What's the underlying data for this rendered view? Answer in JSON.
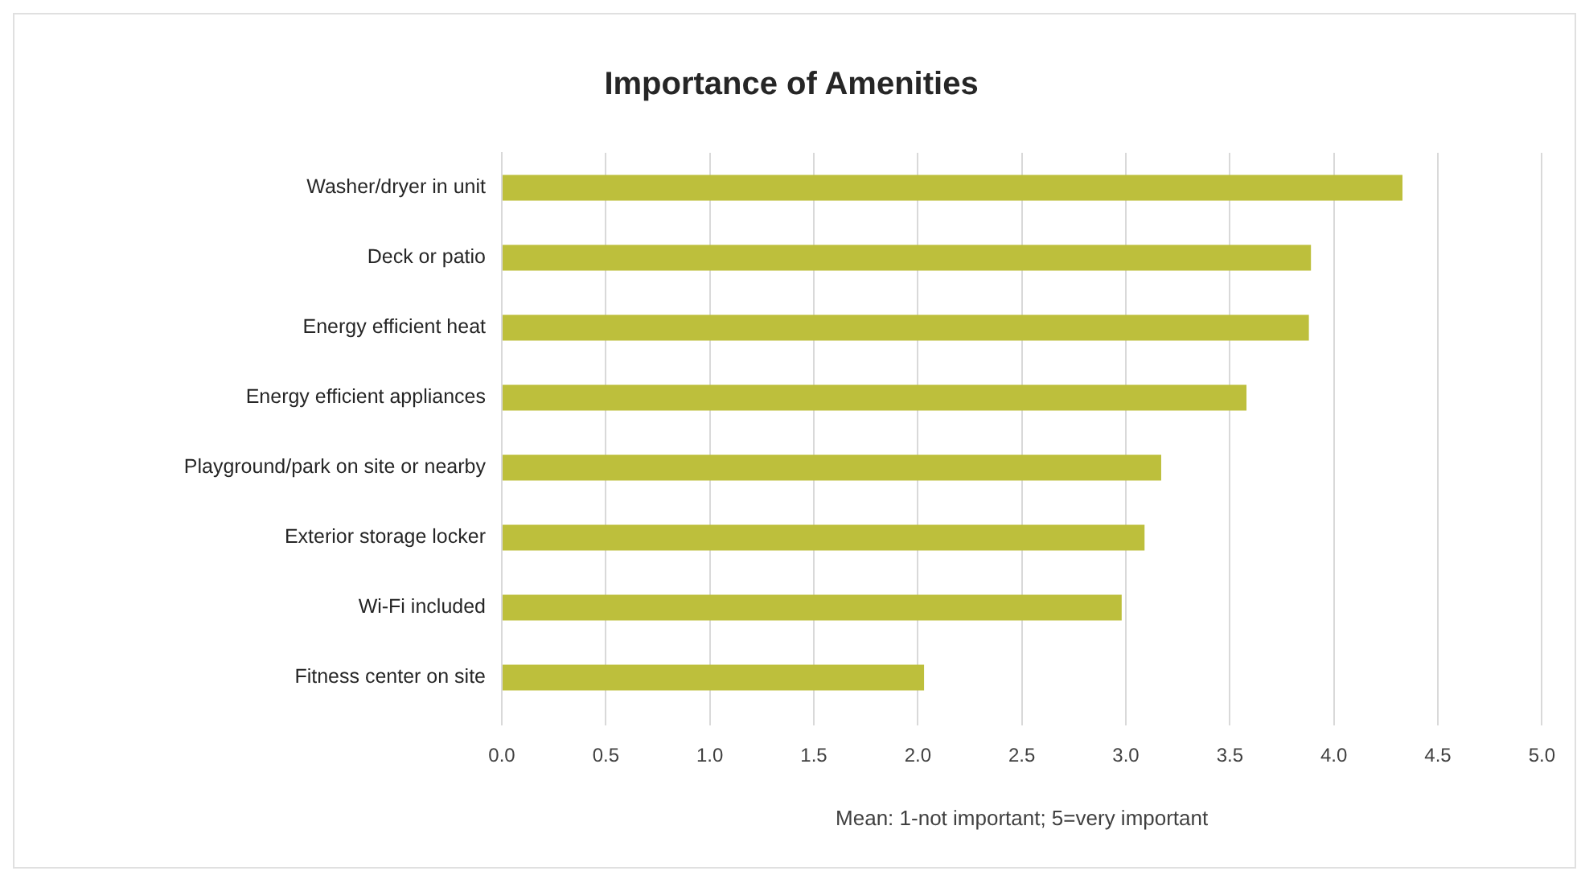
{
  "chart_data": {
    "type": "bar",
    "orientation": "horizontal",
    "title": "Importance of Amenities",
    "xlabel": "Mean: 1-not important; 5=very important",
    "categories": [
      "Washer/dryer in unit",
      "Deck or patio",
      "Energy efficient heat",
      "Energy efficient appliances",
      "Playground/park on site or nearby",
      "Exterior storage locker",
      "Wi-Fi included",
      "Fitness center on site"
    ],
    "values": [
      4.33,
      3.89,
      3.88,
      3.58,
      3.17,
      3.09,
      2.98,
      2.03
    ],
    "color": "#bdbf3c",
    "xlim": [
      0,
      5
    ],
    "xticks": [
      {
        "value": 0,
        "label": "0.0"
      },
      {
        "value": 0.5,
        "label": "0.5"
      },
      {
        "value": 1,
        "label": "1.0"
      },
      {
        "value": 1.5,
        "label": "1.5"
      },
      {
        "value": 2,
        "label": "2.0"
      },
      {
        "value": 2.5,
        "label": "2.5"
      },
      {
        "value": 3,
        "label": "3.0"
      },
      {
        "value": 3.5,
        "label": "3.5"
      },
      {
        "value": 4,
        "label": "4.0"
      },
      {
        "value": 4.5,
        "label": "4.5"
      },
      {
        "value": 5,
        "label": "5.0"
      }
    ],
    "grid": "x"
  }
}
